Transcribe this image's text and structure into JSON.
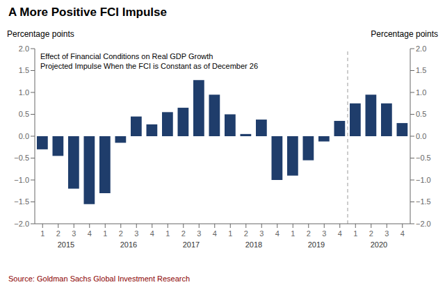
{
  "chart_data": {
    "type": "bar",
    "title": "A More Positive FCI Impulse",
    "y_label": "Percentage points",
    "y2_label": "Percentage points",
    "annotations": [
      "Effect of Financial Conditions on Real GDP Growth",
      "Projected Impulse When the FCI is Constant as of December 26"
    ],
    "source": "Source: Goldman Sachs Global Investment Research",
    "source_color": "#8B0000",
    "categories": [
      "1",
      "2",
      "3",
      "4",
      "1",
      "2",
      "3",
      "4",
      "1",
      "2",
      "3",
      "4",
      "1",
      "2",
      "3",
      "4",
      "1",
      "2",
      "3",
      "4",
      "1",
      "2",
      "3",
      "4"
    ],
    "x_group_labels": [
      "2015",
      "2016",
      "2017",
      "2018",
      "2019",
      "2020"
    ],
    "values": [
      -0.3,
      -0.45,
      -1.2,
      -1.55,
      -1.3,
      -0.15,
      0.45,
      0.27,
      0.55,
      0.65,
      1.28,
      0.95,
      0.5,
      0.05,
      0.38,
      -1.0,
      -0.9,
      -0.55,
      -0.12,
      0.35,
      0.75,
      0.95,
      0.75,
      0.3
    ],
    "color": "#1f3d6b",
    "ylim": [
      -2.0,
      2.0
    ],
    "yticks": [
      {
        "value": -2.0,
        "label": "−2.0"
      },
      {
        "value": -1.5,
        "label": "−1.5"
      },
      {
        "value": -1.0,
        "label": "−1.0"
      },
      {
        "value": -0.5,
        "label": "−0.5"
      },
      {
        "value": 0,
        "label": "0.0"
      },
      {
        "value": 0.5,
        "label": "0.5"
      },
      {
        "value": 1.0,
        "label": "1.0"
      },
      {
        "value": 1.5,
        "label": "1.5"
      },
      {
        "value": 2.0,
        "label": "2.0"
      }
    ],
    "y2lim": [
      -2.0,
      2.0
    ],
    "y2ticks": [
      {
        "value": -2.0,
        "label": "−2.0"
      },
      {
        "value": -1.5,
        "label": "−1.5"
      },
      {
        "value": -1.0,
        "label": "−1.0"
      },
      {
        "value": -0.5,
        "label": "−0.5"
      },
      {
        "value": 0,
        "label": "0.0"
      },
      {
        "value": 0.5,
        "label": "0.5"
      },
      {
        "value": 1.0,
        "label": "1.0"
      },
      {
        "value": 1.5,
        "label": "1.5"
      },
      {
        "value": 2.0,
        "label": "2.0"
      }
    ],
    "vline": 19.5,
    "grid": false
  }
}
